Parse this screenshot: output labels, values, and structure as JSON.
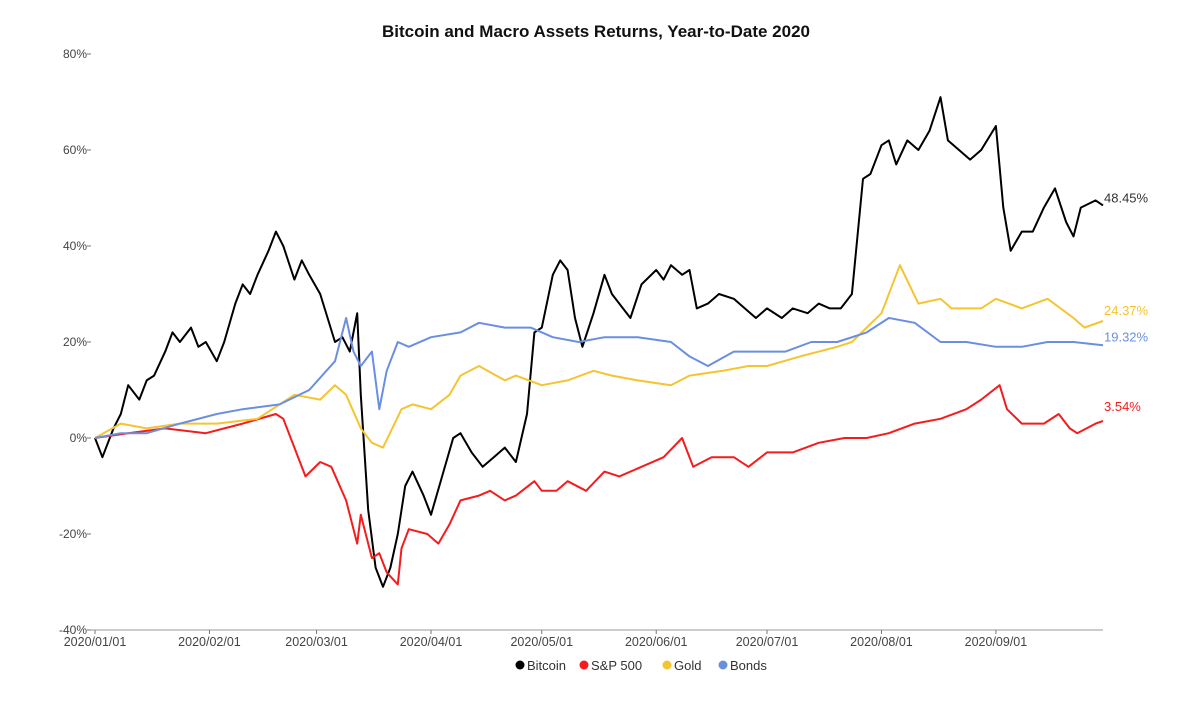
{
  "chart_data": {
    "type": "line",
    "title": "Bitcoin and Macro Assets Returns, Year-to-Date 2020",
    "xlabel": "",
    "ylabel": "",
    "xlim": [
      "2020/01/01",
      "2020/09/30"
    ],
    "ylim": [
      -40,
      80
    ],
    "yticks": [
      "80%",
      "60%",
      "40%",
      "20%",
      "0%",
      "-20%",
      "-40%"
    ],
    "ytick_values": [
      80,
      60,
      40,
      20,
      0,
      -20,
      -40
    ],
    "xticks": [
      "2020/01/01",
      "2020/02/01",
      "2020/03/01",
      "2020/04/01",
      "2020/05/01",
      "2020/06/01",
      "2020/07/01",
      "2020/08/01",
      "2020/09/01"
    ],
    "grid": false,
    "legend": "bottom",
    "series": [
      {
        "name": "Bitcoin",
        "color": "#000000",
        "end_label": "48.45%",
        "points": [
          [
            "01/01",
            0
          ],
          [
            "01/03",
            -4
          ],
          [
            "01/06",
            2
          ],
          [
            "01/08",
            5
          ],
          [
            "01/10",
            11
          ],
          [
            "01/13",
            8
          ],
          [
            "01/15",
            12
          ],
          [
            "01/17",
            13
          ],
          [
            "01/20",
            18
          ],
          [
            "01/22",
            22
          ],
          [
            "01/24",
            20
          ],
          [
            "01/27",
            23
          ],
          [
            "01/29",
            19
          ],
          [
            "01/31",
            20
          ],
          [
            "02/03",
            16
          ],
          [
            "02/05",
            20
          ],
          [
            "02/08",
            28
          ],
          [
            "02/10",
            32
          ],
          [
            "02/12",
            30
          ],
          [
            "02/14",
            34
          ],
          [
            "02/17",
            39
          ],
          [
            "02/19",
            43
          ],
          [
            "02/21",
            40
          ],
          [
            "02/24",
            33
          ],
          [
            "02/26",
            37
          ],
          [
            "02/28",
            34
          ],
          [
            "03/02",
            30
          ],
          [
            "03/04",
            25
          ],
          [
            "03/06",
            20
          ],
          [
            "03/08",
            21
          ],
          [
            "03/10",
            18
          ],
          [
            "03/12",
            26
          ],
          [
            "03/13",
            9
          ],
          [
            "03/15",
            -15
          ],
          [
            "03/17",
            -27
          ],
          [
            "03/19",
            -31
          ],
          [
            "03/21",
            -27
          ],
          [
            "03/23",
            -20
          ],
          [
            "03/25",
            -10
          ],
          [
            "03/27",
            -7
          ],
          [
            "03/30",
            -12
          ],
          [
            "04/01",
            -16
          ],
          [
            "04/04",
            -8
          ],
          [
            "04/07",
            0
          ],
          [
            "04/09",
            1
          ],
          [
            "04/12",
            -3
          ],
          [
            "04/15",
            -6
          ],
          [
            "04/18",
            -4
          ],
          [
            "04/21",
            -2
          ],
          [
            "04/24",
            -5
          ],
          [
            "04/27",
            5
          ],
          [
            "04/29",
            22
          ],
          [
            "05/01",
            23
          ],
          [
            "05/04",
            34
          ],
          [
            "05/06",
            37
          ],
          [
            "05/08",
            35
          ],
          [
            "05/10",
            25
          ],
          [
            "05/12",
            19
          ],
          [
            "05/15",
            26
          ],
          [
            "05/18",
            34
          ],
          [
            "05/20",
            30
          ],
          [
            "05/22",
            28
          ],
          [
            "05/25",
            25
          ],
          [
            "05/28",
            32
          ],
          [
            "06/01",
            35
          ],
          [
            "06/03",
            33
          ],
          [
            "06/05",
            36
          ],
          [
            "06/08",
            34
          ],
          [
            "06/10",
            35
          ],
          [
            "06/12",
            27
          ],
          [
            "06/15",
            28
          ],
          [
            "06/18",
            30
          ],
          [
            "06/22",
            29
          ],
          [
            "06/25",
            27
          ],
          [
            "06/28",
            25
          ],
          [
            "07/01",
            27
          ],
          [
            "07/05",
            25
          ],
          [
            "07/08",
            27
          ],
          [
            "07/12",
            26
          ],
          [
            "07/15",
            28
          ],
          [
            "07/18",
            27
          ],
          [
            "07/21",
            27
          ],
          [
            "07/24",
            30
          ],
          [
            "07/27",
            54
          ],
          [
            "07/29",
            55
          ],
          [
            "08/01",
            61
          ],
          [
            "08/03",
            62
          ],
          [
            "08/05",
            57
          ],
          [
            "08/08",
            62
          ],
          [
            "08/11",
            60
          ],
          [
            "08/14",
            64
          ],
          [
            "08/17",
            71
          ],
          [
            "08/19",
            62
          ],
          [
            "08/22",
            60
          ],
          [
            "08/25",
            58
          ],
          [
            "08/28",
            60
          ],
          [
            "09/01",
            65
          ],
          [
            "09/03",
            48
          ],
          [
            "09/05",
            39
          ],
          [
            "09/08",
            43
          ],
          [
            "09/11",
            43
          ],
          [
            "09/14",
            48
          ],
          [
            "09/17",
            52
          ],
          [
            "09/20",
            45
          ],
          [
            "09/22",
            42
          ],
          [
            "09/24",
            48
          ],
          [
            "09/28",
            49.5
          ],
          [
            "09/30",
            48.45
          ]
        ]
      },
      {
        "name": "S&P 500",
        "color": "#f41c1c",
        "end_label": "3.54%",
        "points": [
          [
            "01/01",
            0
          ],
          [
            "01/10",
            1
          ],
          [
            "01/20",
            2
          ],
          [
            "01/31",
            1
          ],
          [
            "02/05",
            2
          ],
          [
            "02/10",
            3
          ],
          [
            "02/19",
            5
          ],
          [
            "02/21",
            4
          ],
          [
            "02/24",
            -2
          ],
          [
            "02/27",
            -8
          ],
          [
            "03/02",
            -5
          ],
          [
            "03/05",
            -6
          ],
          [
            "03/09",
            -13
          ],
          [
            "03/12",
            -22
          ],
          [
            "03/13",
            -16
          ],
          [
            "03/16",
            -25
          ],
          [
            "03/18",
            -24
          ],
          [
            "03/20",
            -28
          ],
          [
            "03/23",
            -30.5
          ],
          [
            "03/24",
            -23
          ],
          [
            "03/26",
            -19
          ],
          [
            "03/31",
            -20
          ],
          [
            "04/03",
            -22
          ],
          [
            "04/06",
            -18
          ],
          [
            "04/09",
            -13
          ],
          [
            "04/14",
            -12
          ],
          [
            "04/17",
            -11
          ],
          [
            "04/21",
            -13
          ],
          [
            "04/24",
            -12
          ],
          [
            "04/29",
            -9
          ],
          [
            "05/01",
            -11
          ],
          [
            "05/05",
            -11
          ],
          [
            "05/08",
            -9
          ],
          [
            "05/13",
            -11
          ],
          [
            "05/18",
            -7
          ],
          [
            "05/22",
            -8
          ],
          [
            "05/28",
            -6
          ],
          [
            "06/03",
            -4
          ],
          [
            "06/08",
            0
          ],
          [
            "06/11",
            -6
          ],
          [
            "06/16",
            -4
          ],
          [
            "06/22",
            -4
          ],
          [
            "06/26",
            -6
          ],
          [
            "07/01",
            -3
          ],
          [
            "07/08",
            -3
          ],
          [
            "07/15",
            -1
          ],
          [
            "07/22",
            0
          ],
          [
            "07/28",
            0
          ],
          [
            "08/03",
            1
          ],
          [
            "08/10",
            3
          ],
          [
            "08/17",
            4
          ],
          [
            "08/24",
            6
          ],
          [
            "08/28",
            8
          ],
          [
            "09/02",
            11
          ],
          [
            "09/04",
            6
          ],
          [
            "09/08",
            3
          ],
          [
            "09/14",
            3
          ],
          [
            "09/18",
            5
          ],
          [
            "09/21",
            2
          ],
          [
            "09/23",
            1
          ],
          [
            "09/28",
            3
          ],
          [
            "09/30",
            3.54
          ]
        ]
      },
      {
        "name": "Gold",
        "color": "#f5c431",
        "end_label": "24.37%",
        "points": [
          [
            "01/01",
            0
          ],
          [
            "01/08",
            3
          ],
          [
            "01/15",
            2
          ],
          [
            "01/24",
            3
          ],
          [
            "02/03",
            3
          ],
          [
            "02/14",
            4
          ],
          [
            "02/24",
            9
          ],
          [
            "03/02",
            8
          ],
          [
            "03/06",
            11
          ],
          [
            "03/09",
            9
          ],
          [
            "03/13",
            2
          ],
          [
            "03/16",
            -1
          ],
          [
            "03/19",
            -2
          ],
          [
            "03/24",
            6
          ],
          [
            "03/27",
            7
          ],
          [
            "04/01",
            6
          ],
          [
            "04/06",
            9
          ],
          [
            "04/09",
            13
          ],
          [
            "04/14",
            15
          ],
          [
            "04/21",
            12
          ],
          [
            "04/24",
            13
          ],
          [
            "05/01",
            11
          ],
          [
            "05/08",
            12
          ],
          [
            "05/15",
            14
          ],
          [
            "05/20",
            13
          ],
          [
            "05/27",
            12
          ],
          [
            "06/05",
            11
          ],
          [
            "06/10",
            13
          ],
          [
            "06/19",
            14
          ],
          [
            "06/26",
            15
          ],
          [
            "07/01",
            15
          ],
          [
            "07/10",
            17
          ],
          [
            "07/20",
            19
          ],
          [
            "07/24",
            20
          ],
          [
            "07/28",
            23
          ],
          [
            "08/01",
            26
          ],
          [
            "08/06",
            36
          ],
          [
            "08/11",
            28
          ],
          [
            "08/17",
            29
          ],
          [
            "08/20",
            27
          ],
          [
            "08/24",
            27
          ],
          [
            "08/28",
            27
          ],
          [
            "09/01",
            29
          ],
          [
            "09/08",
            27
          ],
          [
            "09/15",
            29
          ],
          [
            "09/22",
            25
          ],
          [
            "09/25",
            23
          ],
          [
            "09/30",
            24.37
          ]
        ]
      },
      {
        "name": "Bonds",
        "color": "#6b8fe0",
        "end_label": "19.32%",
        "points": [
          [
            "01/01",
            0
          ],
          [
            "01/08",
            1
          ],
          [
            "01/15",
            1
          ],
          [
            "01/24",
            3
          ],
          [
            "02/03",
            5
          ],
          [
            "02/10",
            6
          ],
          [
            "02/20",
            7
          ],
          [
            "02/28",
            10
          ],
          [
            "03/06",
            16
          ],
          [
            "03/09",
            25
          ],
          [
            "03/11",
            18
          ],
          [
            "03/13",
            15
          ],
          [
            "03/16",
            18
          ],
          [
            "03/18",
            6
          ],
          [
            "03/20",
            14
          ],
          [
            "03/23",
            20
          ],
          [
            "03/26",
            19
          ],
          [
            "04/01",
            21
          ],
          [
            "04/09",
            22
          ],
          [
            "04/14",
            24
          ],
          [
            "04/21",
            23
          ],
          [
            "04/28",
            23
          ],
          [
            "05/04",
            21
          ],
          [
            "05/11",
            20
          ],
          [
            "05/18",
            21
          ],
          [
            "05/27",
            21
          ],
          [
            "06/05",
            20
          ],
          [
            "06/10",
            17
          ],
          [
            "06/15",
            15
          ],
          [
            "06/22",
            18
          ],
          [
            "06/29",
            18
          ],
          [
            "07/06",
            18
          ],
          [
            "07/13",
            20
          ],
          [
            "07/20",
            20
          ],
          [
            "07/28",
            22
          ],
          [
            "08/03",
            25
          ],
          [
            "08/10",
            24
          ],
          [
            "08/17",
            20
          ],
          [
            "08/24",
            20
          ],
          [
            "09/01",
            19
          ],
          [
            "09/08",
            19
          ],
          [
            "09/15",
            20
          ],
          [
            "09/22",
            20
          ],
          [
            "09/30",
            19.32
          ]
        ]
      }
    ]
  }
}
